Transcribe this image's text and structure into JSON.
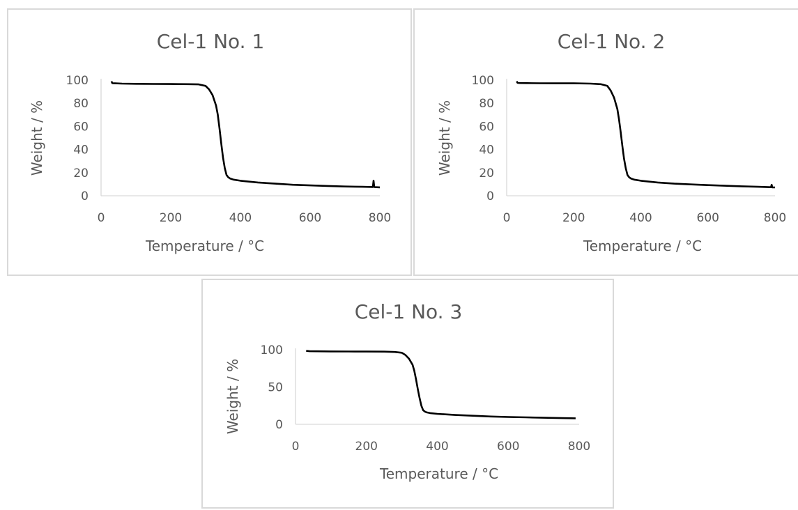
{
  "chart_data": [
    {
      "type": "line",
      "title": "Cel-1 No. 1",
      "xlabel": "Temperature / °C",
      "ylabel": "Weight / %",
      "xlim": [
        0,
        800
      ],
      "ylim": [
        0,
        100
      ],
      "xticks": [
        "0",
        "200",
        "400",
        "600",
        "800"
      ],
      "yticks": [
        "0",
        "20",
        "40",
        "60",
        "80",
        "100"
      ],
      "grid": false,
      "line_color": "#000000",
      "series": [
        {
          "x": [
            30,
            32,
            34,
            40,
            60,
            100,
            150,
            200,
            250,
            280,
            300,
            310,
            320,
            330,
            335,
            340,
            345,
            350,
            355,
            360,
            365,
            370,
            380,
            400,
            450,
            500,
            550,
            600,
            650,
            700,
            750,
            780,
            782,
            784,
            786,
            800
          ],
          "y": [
            99,
            97.5,
            97.3,
            97.2,
            97,
            96.8,
            96.7,
            96.6,
            96.5,
            96.3,
            95,
            92,
            87,
            78,
            70,
            58,
            45,
            33,
            24,
            18,
            16,
            15,
            14,
            13,
            11.5,
            10.5,
            9.5,
            9,
            8.5,
            8,
            7.8,
            7.6,
            13,
            7.6,
            7.5,
            7.3
          ]
        }
      ]
    },
    {
      "type": "line",
      "title": "Cel-1 No. 2",
      "xlabel": "Temperature / °C",
      "ylabel": "Weight / %",
      "xlim": [
        0,
        800
      ],
      "ylim": [
        0,
        100
      ],
      "xticks": [
        "0",
        "200",
        "400",
        "600",
        "800"
      ],
      "yticks": [
        "0",
        "20",
        "40",
        "60",
        "80",
        "100"
      ],
      "grid": false,
      "line_color": "#000000",
      "series": [
        {
          "x": [
            30,
            32,
            34,
            40,
            60,
            100,
            150,
            200,
            250,
            280,
            300,
            310,
            320,
            330,
            335,
            340,
            345,
            350,
            355,
            360,
            365,
            370,
            380,
            400,
            450,
            500,
            550,
            600,
            650,
            700,
            750,
            780,
            788,
            790,
            792,
            800
          ],
          "y": [
            99,
            97.8,
            97.6,
            97.5,
            97.4,
            97.3,
            97.2,
            97.2,
            97,
            96.5,
            95,
            91,
            85,
            75,
            66,
            55,
            43,
            32,
            24,
            18,
            16,
            15,
            14,
            13,
            11.5,
            10.5,
            9.8,
            9.2,
            8.7,
            8.2,
            7.8,
            7.5,
            7.4,
            9.5,
            7.3,
            7.2
          ]
        }
      ]
    },
    {
      "type": "line",
      "title": "Cel-1 No. 3",
      "xlabel": "Temperature / °C",
      "ylabel": "Weight / %",
      "xlim": [
        0,
        800
      ],
      "ylim": [
        0,
        100
      ],
      "xticks": [
        "0",
        "200",
        "400",
        "600",
        "800"
      ],
      "yticks": [
        "0",
        "50",
        "100"
      ],
      "grid": false,
      "line_color": "#000000",
      "series": [
        {
          "x": [
            30,
            40,
            100,
            150,
            200,
            250,
            280,
            300,
            310,
            320,
            330,
            335,
            340,
            345,
            350,
            355,
            360,
            365,
            370,
            380,
            400,
            450,
            500,
            550,
            600,
            650,
            700,
            750,
            790
          ],
          "y": [
            98.5,
            98,
            97.8,
            97.7,
            97.6,
            97.5,
            97,
            96,
            93,
            88,
            80,
            72,
            60,
            47,
            35,
            25,
            19,
            17,
            16,
            15,
            14,
            12.5,
            11.5,
            10.5,
            9.8,
            9.3,
            8.8,
            8.3,
            8
          ]
        }
      ]
    }
  ]
}
